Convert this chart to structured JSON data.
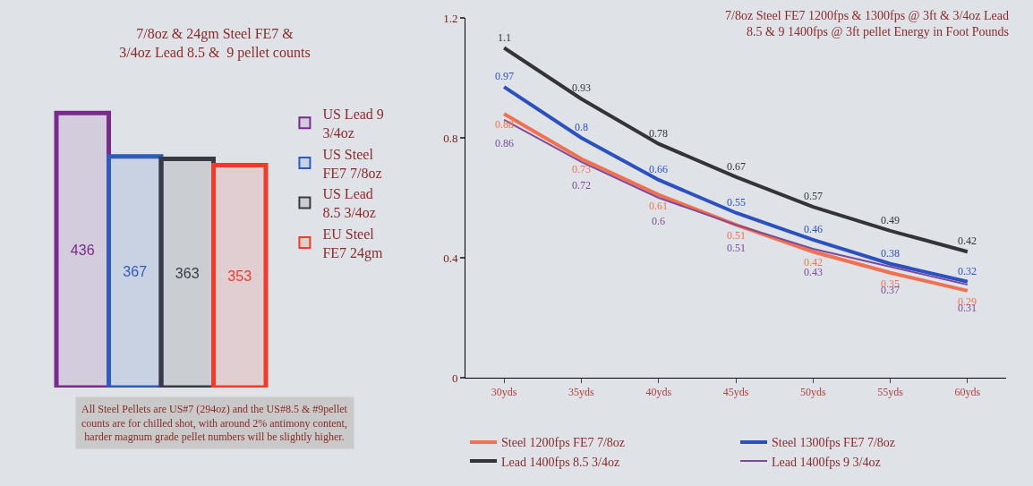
{
  "chart_data": [
    {
      "type": "bar",
      "title": "7/8oz & 24gm Steel FE7 &\n3/4oz Lead 8.5 &  9 pellet counts",
      "categories": [
        null
      ],
      "series": [
        {
          "name": "US Lead 9\n3/4oz",
          "color": "#7a2a8a",
          "values": [
            436
          ]
        },
        {
          "name": "US Steel\nFE7 7/8oz",
          "color": "#2f5bbd",
          "values": [
            367
          ]
        },
        {
          "name": "US Lead\n8.5 3/4oz",
          "color": "#3a3a44",
          "values": [
            363
          ]
        },
        {
          "name": "EU Steel\nFE7 24gm",
          "color": "#f03a2a",
          "values": [
            353
          ]
        }
      ],
      "data_labels": true,
      "legend": "right",
      "tick_labels": false,
      "annotations": [
        "All Steel Pellets are US#7 (294oz) and the US#8.5 & #9pellet\ncounts are for chilled shot, with around 2% antimony content,\nharder magnum grade pellet numbers will be slightly higher."
      ]
    },
    {
      "type": "line",
      "title": "7/8oz Steel FE7 1200fps & 1300fps @ 3ft & 3/4oz Lead\n8.5 & 9 1400fps @ 3ft pellet Energy in Foot Pounds",
      "categories": [
        "30yds",
        "35yds",
        "40yds",
        "45yds",
        "50yds",
        "55yds",
        "60yds"
      ],
      "series": [
        {
          "name": "Steel 1200fps FE7 7/8oz",
          "color": "#f07050",
          "values": [
            0.88,
            0.73,
            0.61,
            0.51,
            0.42,
            0.35,
            0.29
          ]
        },
        {
          "name": "Steel 1300fps FE7 7/8oz",
          "color": "#2b50c0",
          "values": [
            0.97,
            0.8,
            0.66,
            0.55,
            0.46,
            0.38,
            0.32
          ]
        },
        {
          "name": "Lead 1400fps 8.5 3/4oz",
          "color": "#333338",
          "values": [
            1.1,
            0.93,
            0.78,
            0.67,
            0.57,
            0.49,
            0.42
          ]
        },
        {
          "name": "Lead 1400fps 9 3/4oz",
          "color": "#7b4a9a",
          "values": [
            0.86,
            0.72,
            0.6,
            0.51,
            0.43,
            0.37,
            0.31
          ]
        }
      ],
      "ylim": [
        0,
        1.2
      ],
      "yticks": [
        0,
        0.4,
        0.8,
        1.2
      ],
      "data_labels": true,
      "legend": "bottom",
      "grid": false
    }
  ]
}
